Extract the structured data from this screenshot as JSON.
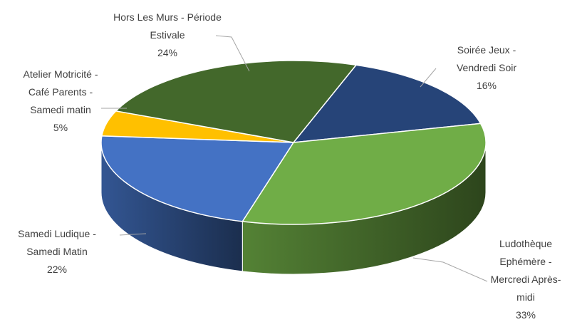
{
  "chart_data": {
    "type": "pie3d",
    "categories": [
      "Soirée Jeux - Vendredi Soir",
      "Ludothèque Ephémère - Mercredi Après-midi",
      "Samedi Ludique - Samedi Matin",
      "Atelier Motricité - Café Parents - Samedi matin",
      "Hors Les Murs - Période Estivale"
    ],
    "values": [
      16,
      33,
      22,
      5,
      24
    ],
    "value_labels": [
      "16%",
      "33%",
      "22%",
      "5%",
      "24%"
    ],
    "colors": [
      "#264478",
      "#70ad47",
      "#4472c4",
      "#ffc000",
      "#43682b"
    ]
  }
}
